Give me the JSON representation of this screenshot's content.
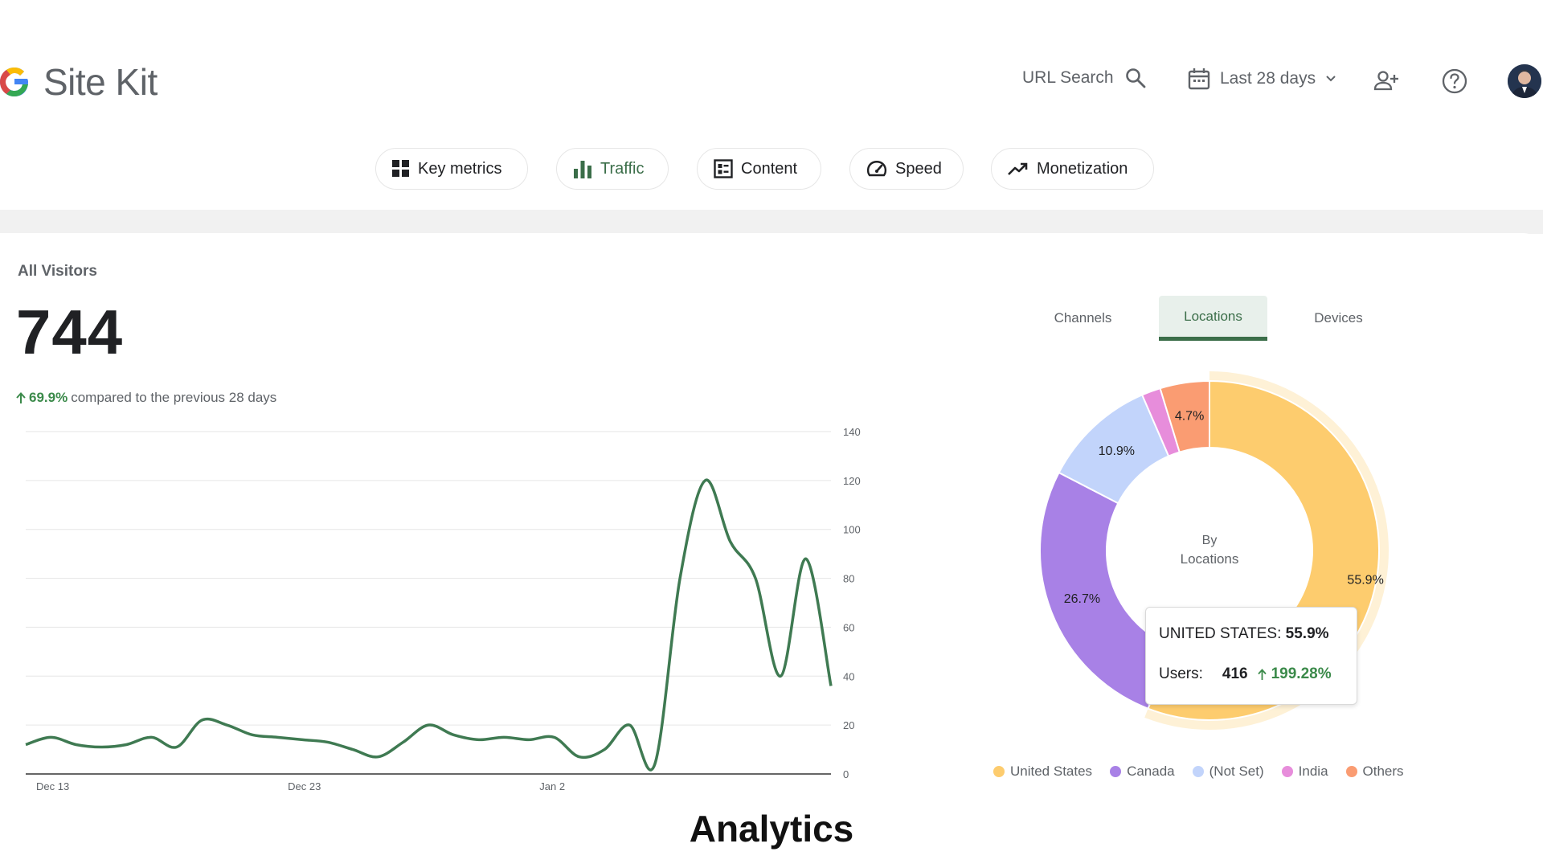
{
  "app": {
    "name": "Site Kit"
  },
  "header": {
    "url_search_label": "URL Search",
    "date_range_label": "Last 28 days"
  },
  "nav": {
    "tabs": [
      {
        "label": "Key metrics",
        "icon": "grid-icon"
      },
      {
        "label": "Traffic",
        "icon": "bar-chart-icon",
        "active": true
      },
      {
        "label": "Content",
        "icon": "content-list-icon"
      },
      {
        "label": "Speed",
        "icon": "speedometer-icon"
      },
      {
        "label": "Monetization",
        "icon": "trending-up-icon"
      }
    ]
  },
  "visitors": {
    "title": "All Visitors",
    "value": "744",
    "change": "69.9%",
    "change_text": "compared to the previous 28 days"
  },
  "breakdown_tabs": [
    {
      "label": "Channels"
    },
    {
      "label": "Locations",
      "active": true
    },
    {
      "label": "Devices"
    }
  ],
  "donut_center": {
    "line1": "By",
    "line2": "Locations"
  },
  "tooltip": {
    "country_label": "UNITED STATES:",
    "country_value": "55.9%",
    "users_label": "Users:",
    "users_value": "416",
    "users_change": "199.28%"
  },
  "colors": {
    "accent_green": "#3b6e49",
    "line": "#3f7a52",
    "united_states": "#fdcc6e",
    "canada": "#a881e6",
    "not_set": "#c2d4fb",
    "india": "#e78ddb",
    "others": "#fa9c72"
  },
  "chart_data": [
    {
      "type": "line",
      "series": [
        {
          "values": [
            12,
            15,
            12,
            11,
            12,
            15,
            11,
            22,
            20,
            16,
            15,
            14,
            13,
            10,
            7,
            13,
            20,
            16,
            14,
            15,
            14,
            15,
            7,
            10,
            20,
            4,
            80,
            120,
            95,
            80,
            40,
            88,
            36
          ]
        }
      ],
      "x_tick_labels": [
        "Dec 13",
        "Dec 23",
        "Jan 2"
      ],
      "x_tick_index": [
        0,
        10,
        20
      ],
      "ylim": [
        0,
        140
      ],
      "y_ticks": [
        0,
        20,
        40,
        60,
        80,
        100,
        120,
        140
      ],
      "grid": true
    },
    {
      "type": "pie",
      "donut": true,
      "categories": [
        "United States",
        "Canada",
        "(Not Set)",
        "India",
        "Others"
      ],
      "values": [
        55.9,
        26.7,
        10.9,
        1.8,
        4.7
      ],
      "data_labels": [
        "55.9%",
        "26.7%",
        "10.9%",
        "",
        "4.7%"
      ],
      "legend_position": "bottom"
    }
  ],
  "caption": "Analytics"
}
